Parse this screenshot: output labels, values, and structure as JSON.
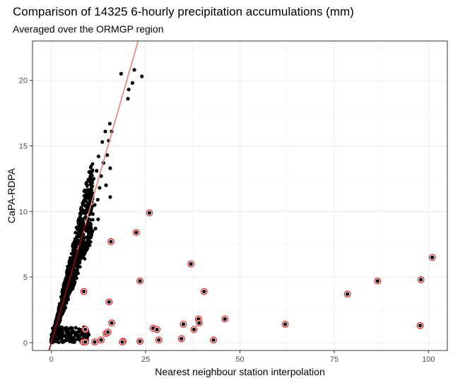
{
  "chart_data": {
    "type": "scatter",
    "title": "Comparison of 14325 6-hourly precipitation accumulations (mm)",
    "subtitle": "Averaged over the ORMGP region",
    "xlabel": "Nearest neighbour station interpolation",
    "ylabel": "CaPA-RDPA",
    "xlim": [
      -5,
      105
    ],
    "ylim": [
      -0.6,
      23
    ],
    "xticks": [
      0,
      25,
      50,
      75,
      100
    ],
    "yticks": [
      0,
      5,
      10,
      15,
      20
    ],
    "grid": true,
    "legend": "none",
    "colors": {
      "points": "#000000",
      "outlier_ring": "#e41a1c",
      "fit_line": "#f08080",
      "fit_line_dark": "#8b0000"
    },
    "fit_line": {
      "slope": 1.0,
      "intercept": 0.0,
      "from_x": -0.8,
      "to_x": 23
    },
    "series": [
      {
        "role": "outliers",
        "x": [
          26,
          22.5,
          15.8,
          37,
          23.5,
          40.5,
          15.3,
          8.6,
          16,
          27,
          28,
          39,
          46,
          39.2,
          35,
          37.8,
          9,
          14.5,
          15,
          13.2,
          34.5,
          28.5,
          43,
          23.5,
          19,
          18.8,
          11.5,
          62,
          78.5,
          86.5,
          98,
          101,
          97.8,
          8.5,
          9
        ],
        "y": [
          9.9,
          8.4,
          7.7,
          6,
          4.7,
          3.9,
          3.1,
          3.9,
          1.5,
          1.1,
          1.0,
          1.8,
          1.8,
          1.5,
          1.4,
          1.0,
          1.0,
          0.7,
          0.8,
          0.2,
          0.3,
          0.2,
          0.2,
          0.1,
          0.1,
          0.05,
          0.05,
          1.4,
          3.7,
          4.7,
          4.8,
          6.5,
          1.3,
          0.05,
          0.05
        ]
      },
      {
        "role": "upper-tail",
        "x": [
          18.5,
          20.5,
          20.3,
          21.5,
          22,
          24,
          15.5,
          16,
          14.3,
          15.2,
          13.5,
          14.8,
          12.5,
          13.8,
          15.6,
          12,
          13.2,
          11.2,
          14.5,
          12.8,
          11,
          15.6,
          12.3,
          11.5,
          10.6,
          11,
          12.4,
          10.2,
          11.7,
          10.4,
          9.8
        ],
        "y": [
          20.5,
          19.3,
          18.6,
          19.8,
          20.8,
          20.3,
          16.7,
          16.1,
          16.1,
          15.4,
          15.3,
          14.3,
          14.2,
          13.7,
          13.3,
          13.1,
          12.7,
          12.5,
          12.0,
          11.8,
          11.4,
          11.1,
          10.9,
          10.5,
          10.2,
          9.8,
          9.4,
          9.1,
          8.7,
          8.3,
          7.9
        ]
      }
    ]
  }
}
